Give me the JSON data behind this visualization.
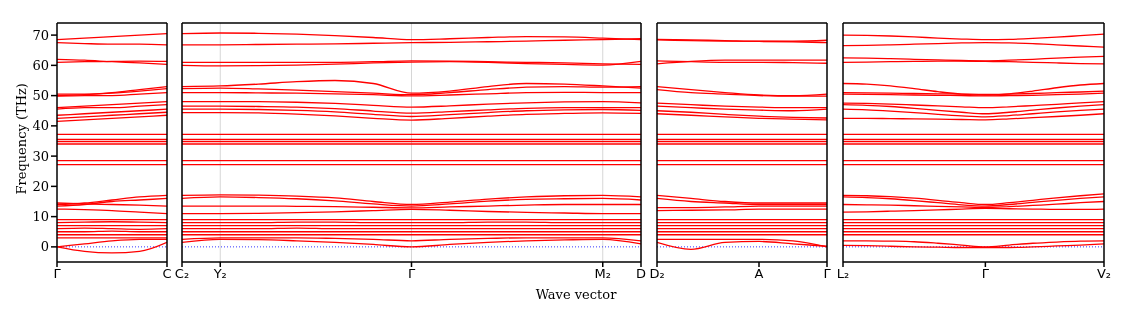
{
  "chart_data": [
    {
      "type": "line",
      "ylabel": "Frequency (THz)",
      "color": "#ff0000",
      "marker": "none",
      "line_style": "solid",
      "legend": false,
      "tick_labels": "xy",
      "categories": [
        "Γ",
        null,
        null,
        null,
        "C"
      ],
      "ylim": [
        -5,
        74
      ],
      "yticks": [
        0,
        10,
        20,
        30,
        40,
        50,
        60,
        70
      ],
      "ref_lines": [
        {
          "axis": "y",
          "value": 0,
          "color": "#0000ff",
          "line_style": "dotted"
        }
      ],
      "series": [
        {
          "values": [
            68.5,
            69,
            69.5,
            70,
            70.5
          ]
        },
        {
          "values": [
            67.5,
            67.2,
            67,
            67,
            66.8
          ]
        },
        {
          "values": [
            62,
            61.7,
            61.2,
            60.8,
            60.3
          ]
        },
        {
          "values": [
            61,
            61.2,
            61.3,
            61.4,
            61.3
          ]
        },
        {
          "values": [
            50.5,
            50.5,
            51,
            52,
            53
          ]
        },
        {
          "values": [
            50,
            50.3,
            50.8,
            51.5,
            52.3
          ]
        },
        {
          "values": [
            49.8,
            50,
            50,
            50.5,
            51
          ]
        },
        {
          "values": [
            46,
            46.5,
            47,
            47.5,
            48
          ]
        },
        {
          "values": [
            45.5,
            46,
            46,
            46.5,
            47
          ]
        },
        {
          "values": [
            43.5,
            44,
            44.5,
            45,
            45.5
          ]
        },
        {
          "values": [
            42.5,
            43,
            43.5,
            44,
            44.5
          ]
        },
        {
          "values": [
            41.5,
            42,
            42.5,
            43,
            43.5
          ]
        },
        {
          "values": [
            37.2,
            37.2,
            37.2,
            37.2,
            37.2
          ]
        },
        {
          "values": [
            35.5,
            35.5,
            35.5,
            35.5,
            35.5
          ]
        },
        {
          "values": [
            34.8,
            34.8,
            34.8,
            34.8,
            34.8
          ]
        },
        {
          "values": [
            34,
            34,
            34,
            34,
            34
          ]
        },
        {
          "values": [
            28.5,
            28.5,
            28.5,
            28.5,
            28.5
          ]
        },
        {
          "values": [
            27.2,
            27.2,
            27.2,
            27.2,
            27.2
          ]
        },
        {
          "values": [
            14,
            14.5,
            15.5,
            16.5,
            17
          ]
        },
        {
          "values": [
            13.5,
            14,
            15,
            15.5,
            16
          ]
        },
        {
          "values": [
            14.5,
            14.2,
            14,
            13.8,
            13.5
          ]
        },
        {
          "values": [
            12.5,
            12.3,
            12,
            11.5,
            11
          ]
        },
        {
          "values": [
            9,
            9,
            9,
            9,
            9
          ]
        },
        {
          "values": [
            8,
            8.2,
            8.3,
            8.2,
            8
          ]
        },
        {
          "values": [
            7,
            7,
            7,
            7,
            7
          ]
        },
        {
          "values": [
            6,
            6.2,
            6,
            5.8,
            6
          ]
        },
        {
          "values": [
            5,
            5,
            5.2,
            5,
            5
          ]
        },
        {
          "values": [
            4,
            4,
            4,
            4,
            4
          ]
        },
        {
          "values": [
            3,
            3,
            3,
            3,
            3
          ]
        },
        {
          "values": [
            0,
            1,
            2,
            2.5,
            2.5
          ]
        },
        {
          "values": [
            0,
            -1.5,
            -2,
            -1.5,
            1.5
          ]
        }
      ]
    },
    {
      "type": "line",
      "xlabel": "Wave vector",
      "color": "#ff0000",
      "grid": "x",
      "marker": "none",
      "line_style": "solid",
      "legend": false,
      "tick_labels": "x",
      "categories": [
        "C₂",
        "Y₂",
        null,
        null,
        null,
        null,
        "Γ",
        null,
        null,
        null,
        null,
        "M₂",
        "D"
      ],
      "ylim": [
        -5,
        74
      ],
      "yticks": [
        0,
        10,
        20,
        30,
        40,
        50,
        60,
        70
      ],
      "ref_lines": [
        {
          "axis": "y",
          "value": 0,
          "color": "#0000ff",
          "line_style": "dotted"
        }
      ],
      "series": [
        {
          "values": [
            70.5,
            70.7,
            70.6,
            70.3,
            69.8,
            69.2,
            68.5,
            68.8,
            69.2,
            69.5,
            69.4,
            69,
            68.5
          ]
        },
        {
          "values": [
            66.8,
            66.8,
            66.9,
            67,
            67.1,
            67.3,
            67.5,
            67.6,
            67.8,
            68,
            68.3,
            68.5,
            68.8
          ]
        },
        {
          "values": [
            61,
            61,
            61,
            61,
            61,
            61.2,
            61.5,
            61.4,
            61.2,
            61,
            60.8,
            60.5,
            60.3
          ]
        },
        {
          "values": [
            60,
            59.8,
            59.9,
            60.1,
            60.4,
            60.8,
            61.1,
            61.2,
            61,
            60.6,
            60.3,
            60.1,
            61.3
          ]
        },
        {
          "values": [
            53,
            53.2,
            53.8,
            54.6,
            55,
            54,
            50.8,
            51.5,
            53,
            54,
            53.8,
            53.2,
            52.5
          ]
        },
        {
          "values": [
            52.3,
            52.5,
            52.2,
            51.8,
            51.3,
            50.8,
            50.3,
            51,
            52,
            52.8,
            53,
            52.8,
            53
          ]
        },
        {
          "values": [
            51,
            51,
            50.9,
            50.8,
            50.6,
            50.3,
            49.9,
            50.2,
            50.6,
            51,
            51.1,
            51,
            51
          ]
        },
        {
          "values": [
            48,
            48,
            48,
            47.8,
            47.4,
            46.8,
            46.2,
            46.6,
            47.2,
            47.6,
            47.9,
            48,
            47.6
          ]
        },
        {
          "values": [
            46.5,
            46.5,
            46.4,
            46.2,
            45.7,
            44.9,
            44.2,
            44.7,
            45.3,
            45.8,
            46,
            46,
            46
          ]
        },
        {
          "values": [
            45.5,
            45.5,
            45.4,
            45.1,
            44.6,
            43.8,
            43.1,
            43.7,
            44.4,
            45,
            45.3,
            45.4,
            45.1
          ]
        },
        {
          "values": [
            44.4,
            44.4,
            44.3,
            43.9,
            43.3,
            42.5,
            41.9,
            42.5,
            43.2,
            43.8,
            44.1,
            44.3,
            44.1
          ]
        },
        {
          "values": [
            37.2,
            37.2,
            37.2,
            37.2,
            37.2,
            37.2,
            37.2,
            37.2,
            37.2,
            37.2,
            37.2,
            37.2,
            37.2
          ]
        },
        {
          "values": [
            35.5,
            35.5,
            35.5,
            35.5,
            35.5,
            35.5,
            35.5,
            35.5,
            35.5,
            35.5,
            35.5,
            35.5,
            35.5
          ]
        },
        {
          "values": [
            34.8,
            34.8,
            34.8,
            34.8,
            34.8,
            34.8,
            34.8,
            34.8,
            34.8,
            34.8,
            34.8,
            34.8,
            34.8
          ]
        },
        {
          "values": [
            34,
            34,
            34,
            34,
            34,
            34,
            34,
            34,
            34,
            34,
            34,
            34,
            34
          ]
        },
        {
          "values": [
            28.5,
            28.5,
            28.5,
            28.5,
            28.5,
            28.5,
            28.5,
            28.5,
            28.5,
            28.5,
            28.5,
            28.5,
            28.5
          ]
        },
        {
          "values": [
            27.2,
            27.2,
            27.2,
            27.2,
            27.2,
            27.2,
            27.2,
            27.2,
            27.2,
            27.2,
            27.2,
            27.2,
            27.2
          ]
        },
        {
          "values": [
            17,
            17.2,
            17.1,
            16.8,
            16.2,
            15,
            14,
            14.8,
            15.8,
            16.5,
            16.9,
            17,
            16.5
          ]
        },
        {
          "values": [
            16,
            16.5,
            16.3,
            15.9,
            15.2,
            14.2,
            13.5,
            14.2,
            15.1,
            15.7,
            15.9,
            16,
            15.5
          ]
        },
        {
          "values": [
            13.5,
            13.5,
            13.5,
            13.4,
            13.3,
            13.1,
            12.9,
            13.2,
            13.5,
            13.8,
            14,
            14,
            14
          ]
        },
        {
          "values": [
            11,
            11,
            11.1,
            11.3,
            11.6,
            12,
            12.4,
            12.1,
            11.7,
            11.4,
            11.2,
            11,
            11
          ]
        },
        {
          "values": [
            9,
            9,
            9,
            9,
            9,
            9,
            9,
            9,
            9,
            9,
            9,
            9,
            9
          ]
        },
        {
          "values": [
            8,
            8,
            8,
            8.2,
            8.2,
            8,
            8,
            8,
            8.2,
            8.2,
            8,
            8,
            8
          ]
        },
        {
          "values": [
            7,
            7,
            7,
            7,
            7,
            7,
            7,
            7,
            7,
            7,
            7,
            7,
            7
          ]
        },
        {
          "values": [
            6,
            6,
            6,
            6.2,
            6,
            6,
            6,
            6,
            6,
            6,
            6,
            6,
            6
          ]
        },
        {
          "values": [
            5,
            5,
            5,
            5,
            5,
            5,
            5,
            5,
            5,
            5,
            5,
            5,
            5
          ]
        },
        {
          "values": [
            4,
            4,
            4,
            4,
            4,
            4,
            4,
            4,
            4,
            4,
            4,
            4,
            4
          ]
        },
        {
          "values": [
            2.5,
            3,
            3,
            3,
            2.8,
            2.5,
            2,
            2.5,
            2.8,
            3,
            3,
            3,
            2
          ]
        },
        {
          "values": [
            1.5,
            2.5,
            2.4,
            2,
            1.5,
            0.8,
            0,
            0.8,
            1.5,
            2,
            2.3,
            2.5,
            1
          ]
        }
      ]
    },
    {
      "type": "line",
      "color": "#ff0000",
      "marker": "none",
      "line_style": "solid",
      "legend": false,
      "tick_labels": "x",
      "categories": [
        "D₂",
        null,
        null,
        "A",
        null,
        "Γ"
      ],
      "ylim": [
        -5,
        74
      ],
      "yticks": [
        0,
        10,
        20,
        30,
        40,
        50,
        60,
        70
      ],
      "ref_lines": [
        {
          "axis": "y",
          "value": 0,
          "color": "#0000ff",
          "line_style": "dotted"
        }
      ],
      "series": [
        {
          "values": [
            68.6,
            68.4,
            68.2,
            68,
            68,
            68.3
          ]
        },
        {
          "values": [
            68.4,
            68.2,
            68,
            67.9,
            67.8,
            67.5
          ]
        },
        {
          "values": [
            60.5,
            61.3,
            61.7,
            61.7,
            61.7,
            61.7
          ]
        },
        {
          "values": [
            61.5,
            61.2,
            61,
            61,
            60.9,
            60.7
          ]
        },
        {
          "values": [
            53,
            52,
            51,
            50.2,
            50,
            50.5
          ]
        },
        {
          "values": [
            52,
            51,
            50.5,
            50,
            49.8,
            49.8
          ]
        },
        {
          "values": [
            47.5,
            47,
            46.5,
            46.2,
            46,
            46
          ]
        },
        {
          "values": [
            46.5,
            46,
            45.5,
            45.2,
            45,
            45.5
          ]
        },
        {
          "values": [
            45,
            44.5,
            43.8,
            43.2,
            42.8,
            42.6
          ]
        },
        {
          "values": [
            44,
            43.5,
            43,
            42.5,
            42.2,
            42
          ]
        },
        {
          "values": [
            37.2,
            37.2,
            37.2,
            37.2,
            37.2,
            37.2
          ]
        },
        {
          "values": [
            35.5,
            35.5,
            35.5,
            35.5,
            35.5,
            35.5
          ]
        },
        {
          "values": [
            34.8,
            34.8,
            34.8,
            34.8,
            34.8,
            34.8
          ]
        },
        {
          "values": [
            34,
            34,
            34,
            34,
            34,
            34
          ]
        },
        {
          "values": [
            28.5,
            28.5,
            28.5,
            28.5,
            28.5,
            28.5
          ]
        },
        {
          "values": [
            27.2,
            27.2,
            27.2,
            27.2,
            27.2,
            27.2
          ]
        },
        {
          "values": [
            17,
            16,
            15,
            14.5,
            14.5,
            14.5
          ]
        },
        {
          "values": [
            16,
            15,
            14.5,
            14,
            14,
            14
          ]
        },
        {
          "values": [
            13,
            13,
            13.2,
            13.5,
            13.5,
            13.5
          ]
        },
        {
          "values": [
            12,
            12.1,
            12.2,
            12.5,
            12.5,
            12.5
          ]
        },
        {
          "values": [
            9,
            9,
            9,
            9,
            9,
            9
          ]
        },
        {
          "values": [
            8,
            8,
            8,
            8,
            8,
            8
          ]
        },
        {
          "values": [
            7,
            7,
            7,
            7,
            7,
            7
          ]
        },
        {
          "values": [
            6,
            6,
            6,
            6,
            6,
            6
          ]
        },
        {
          "values": [
            5,
            5,
            5,
            5,
            5,
            5
          ]
        },
        {
          "values": [
            4,
            4,
            4,
            4,
            4,
            4
          ]
        },
        {
          "values": [
            2.5,
            2.5,
            2.5,
            2.5,
            2,
            0
          ]
        },
        {
          "values": [
            1.5,
            -0.8,
            1.5,
            1.8,
            1,
            0.2
          ]
        }
      ]
    },
    {
      "type": "line",
      "color": "#ff0000",
      "marker": "none",
      "line_style": "solid",
      "legend": false,
      "tick_labels": "x",
      "categories": [
        "L₂",
        null,
        null,
        null,
        null,
        null,
        "Γ",
        null,
        null,
        null,
        null,
        "V₂"
      ],
      "ylim": [
        -5,
        74
      ],
      "yticks": [
        0,
        10,
        20,
        30,
        40,
        50,
        60,
        70
      ],
      "ref_lines": [
        {
          "axis": "y",
          "value": 0,
          "color": "#0000ff",
          "line_style": "dotted"
        }
      ],
      "series": [
        {
          "values": [
            70,
            69.9,
            69.7,
            69.4,
            69,
            68.7,
            68.5,
            68.6,
            68.9,
            69.3,
            69.8,
            70.3
          ]
        },
        {
          "values": [
            66.5,
            66.6,
            66.8,
            67,
            67.2,
            67.4,
            67.5,
            67.4,
            67.2,
            66.8,
            66.4,
            66
          ]
        },
        {
          "values": [
            62.5,
            62.4,
            62.2,
            62,
            61.8,
            61.6,
            61.5,
            61.7,
            62,
            62.4,
            62.7,
            63
          ]
        },
        {
          "values": [
            61,
            61.1,
            61.2,
            61.3,
            61.4,
            61.4,
            61.3,
            61.2,
            61,
            60.8,
            60.6,
            60.5
          ]
        },
        {
          "values": [
            54,
            53.8,
            53.2,
            52.3,
            51.3,
            50.5,
            50.2,
            50.6,
            51.5,
            52.6,
            53.5,
            54
          ]
        },
        {
          "values": [
            51,
            50.9,
            50.8,
            50.7,
            50.6,
            50.5,
            50.4,
            50.5,
            50.7,
            51,
            51.2,
            51.5
          ]
        },
        {
          "values": [
            50.5,
            50.4,
            50.3,
            50.2,
            50.1,
            50,
            49.9,
            50,
            50.1,
            50.3,
            50.5,
            50.8
          ]
        },
        {
          "values": [
            47.5,
            47.4,
            47.2,
            46.9,
            46.6,
            46.3,
            46,
            46.3,
            46.7,
            47.1,
            47.6,
            48
          ]
        },
        {
          "values": [
            47,
            46.8,
            46.4,
            45.8,
            45.1,
            44.5,
            44,
            44.5,
            45.2,
            45.9,
            46.5,
            47
          ]
        },
        {
          "values": [
            45.5,
            45.3,
            44.9,
            44.4,
            43.8,
            43.3,
            43,
            43.4,
            44,
            44.6,
            45.1,
            45.5
          ]
        },
        {
          "values": [
            42.5,
            42.5,
            42.4,
            42.3,
            42.2,
            42.1,
            42,
            42.3,
            42.7,
            43.1,
            43.5,
            44
          ]
        },
        {
          "values": [
            37.2,
            37.2,
            37.2,
            37.2,
            37.2,
            37.2,
            37.2,
            37.2,
            37.2,
            37.2,
            37.2,
            37.2
          ]
        },
        {
          "values": [
            35.5,
            35.5,
            35.5,
            35.5,
            35.5,
            35.5,
            35.5,
            35.5,
            35.5,
            35.5,
            35.5,
            35.5
          ]
        },
        {
          "values": [
            34.8,
            34.8,
            34.8,
            34.8,
            34.8,
            34.8,
            34.8,
            34.8,
            34.8,
            34.8,
            34.8,
            34.8
          ]
        },
        {
          "values": [
            34,
            34,
            34,
            34,
            34,
            34,
            34,
            34,
            34,
            34,
            34,
            34
          ]
        },
        {
          "values": [
            28.5,
            28.5,
            28.5,
            28.5,
            28.5,
            28.5,
            28.5,
            28.5,
            28.5,
            28.5,
            28.5,
            28.5
          ]
        },
        {
          "values": [
            27.2,
            27.2,
            27.2,
            27.2,
            27.2,
            27.2,
            27.2,
            27.2,
            27.2,
            27.2,
            27.2,
            27.2
          ]
        },
        {
          "values": [
            17,
            16.9,
            16.6,
            16.1,
            15.4,
            14.6,
            14,
            14.6,
            15.4,
            16.2,
            16.9,
            17.5
          ]
        },
        {
          "values": [
            16.5,
            16.3,
            15.9,
            15.3,
            14.6,
            13.9,
            13.5,
            14,
            14.7,
            15.4,
            16,
            16.5
          ]
        },
        {
          "values": [
            14,
            13.9,
            13.8,
            13.6,
            13.4,
            13.2,
            13,
            13.3,
            13.7,
            14.1,
            14.6,
            15
          ]
        },
        {
          "values": [
            11.5,
            11.6,
            11.8,
            12,
            12.2,
            12.5,
            12.7,
            12.6,
            12.5,
            12.4,
            12.4,
            12.5
          ]
        },
        {
          "values": [
            9,
            9,
            9,
            9,
            9,
            9,
            9,
            9,
            9,
            9,
            9,
            9
          ]
        },
        {
          "values": [
            8,
            8,
            8,
            8,
            8,
            8,
            8,
            8,
            8,
            8,
            8,
            8
          ]
        },
        {
          "values": [
            7,
            7,
            7,
            7,
            7,
            7,
            7,
            7,
            7,
            7,
            7,
            7
          ]
        },
        {
          "values": [
            6,
            6,
            6,
            6,
            6,
            6,
            6,
            6,
            6,
            6,
            6,
            6
          ]
        },
        {
          "values": [
            5,
            5,
            5,
            5,
            5,
            5,
            5,
            5,
            5,
            5,
            5,
            5
          ]
        },
        {
          "values": [
            4,
            4,
            4,
            4,
            4,
            4,
            4,
            4,
            4,
            4,
            4,
            4
          ]
        },
        {
          "values": [
            2,
            2,
            1.9,
            1.7,
            1.2,
            0.6,
            0,
            0.6,
            1.2,
            1.6,
            1.9,
            2
          ]
        },
        {
          "values": [
            0.5,
            0.4,
            0.2,
            0,
            -0.1,
            -0.2,
            -0.2,
            -0.2,
            0,
            0.3,
            0.6,
            1
          ]
        }
      ]
    }
  ]
}
